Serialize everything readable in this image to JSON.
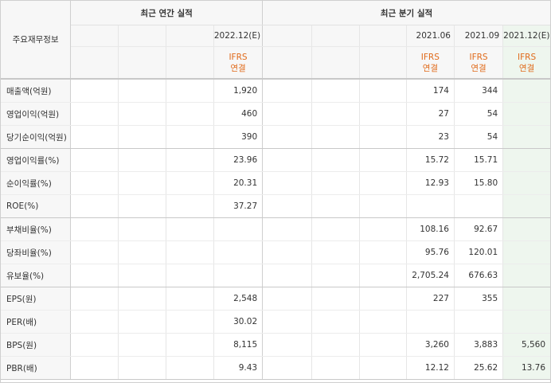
{
  "header": {
    "row_label": "주요재무정보",
    "annual_title": "최근 연간 실적",
    "quarterly_title": "최근 분기 실적",
    "annual_periods": [
      "",
      "",
      "",
      "2022.12(E)"
    ],
    "quarterly_periods": [
      "",
      "",
      "",
      "2021.06",
      "2021.09",
      "2021.12(E)"
    ],
    "annual_standard": [
      "",
      "",
      "",
      "IFRS\n연결"
    ],
    "quarterly_standard": [
      "",
      "",
      "",
      "IFRS\n연결",
      "IFRS\n연결",
      "IFRS\n연결"
    ]
  },
  "rows": [
    {
      "label": "매출액(억원)",
      "annual": [
        "",
        "",
        "",
        "1,920"
      ],
      "quarterly": [
        "",
        "",
        "",
        "174",
        "344",
        ""
      ]
    },
    {
      "label": "영업이익(억원)",
      "annual": [
        "",
        "",
        "",
        "460"
      ],
      "quarterly": [
        "",
        "",
        "",
        "27",
        "54",
        ""
      ]
    },
    {
      "label": "당기순이익(억원)",
      "annual": [
        "",
        "",
        "",
        "390"
      ],
      "quarterly": [
        "",
        "",
        "",
        "23",
        "54",
        ""
      ]
    },
    {
      "label": "영업이익률(%)",
      "annual": [
        "",
        "",
        "",
        "23.96"
      ],
      "quarterly": [
        "",
        "",
        "",
        "15.72",
        "15.71",
        ""
      ]
    },
    {
      "label": "순이익률(%)",
      "annual": [
        "",
        "",
        "",
        "20.31"
      ],
      "quarterly": [
        "",
        "",
        "",
        "12.93",
        "15.80",
        ""
      ]
    },
    {
      "label": "ROE(%)",
      "annual": [
        "",
        "",
        "",
        "37.27"
      ],
      "quarterly": [
        "",
        "",
        "",
        "",
        "",
        ""
      ]
    },
    {
      "label": "부채비율(%)",
      "annual": [
        "",
        "",
        "",
        ""
      ],
      "quarterly": [
        "",
        "",
        "",
        "108.16",
        "92.67",
        ""
      ]
    },
    {
      "label": "당좌비율(%)",
      "annual": [
        "",
        "",
        "",
        ""
      ],
      "quarterly": [
        "",
        "",
        "",
        "95.76",
        "120.01",
        ""
      ]
    },
    {
      "label": "유보율(%)",
      "annual": [
        "",
        "",
        "",
        ""
      ],
      "quarterly": [
        "",
        "",
        "",
        "2,705.24",
        "676.63",
        ""
      ]
    },
    {
      "label": "EPS(원)",
      "annual": [
        "",
        "",
        "",
        "2,548"
      ],
      "quarterly": [
        "",
        "",
        "",
        "227",
        "355",
        ""
      ]
    },
    {
      "label": "PER(배)",
      "annual": [
        "",
        "",
        "",
        "30.02"
      ],
      "quarterly": [
        "",
        "",
        "",
        "",
        "",
        ""
      ]
    },
    {
      "label": "BPS(원)",
      "annual": [
        "",
        "",
        "",
        "8,115"
      ],
      "quarterly": [
        "",
        "",
        "",
        "3,260",
        "3,883",
        "5,560"
      ]
    },
    {
      "label": "PBR(배)",
      "annual": [
        "",
        "",
        "",
        "9.43"
      ],
      "quarterly": [
        "",
        "",
        "",
        "12.12",
        "25.62",
        "13.76"
      ]
    }
  ],
  "colors": {
    "accent": "#e06a1a",
    "highlight": "#eef6ee",
    "header_bg": "#f7f7f7"
  }
}
